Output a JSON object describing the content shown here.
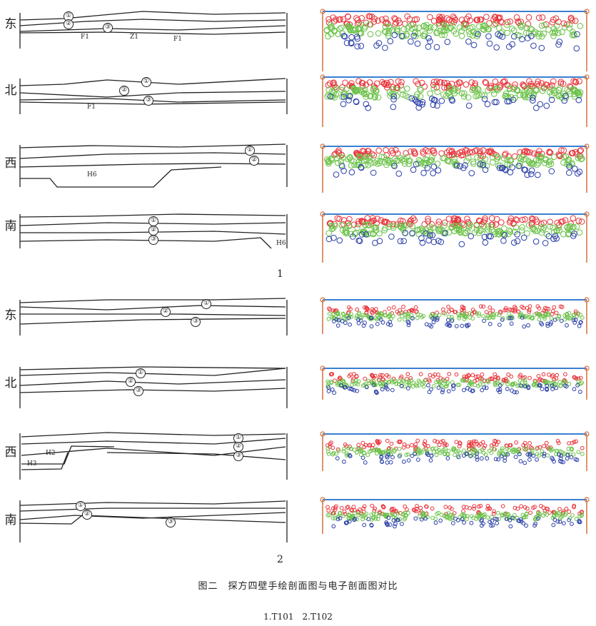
{
  "figure": {
    "caption": "图二　探方四壁手绘剖面图与电子剖面图对比",
    "subcaption": "1.T101　2.T102",
    "plate_labels": [
      "1",
      "2"
    ]
  },
  "plates": [
    {
      "label": "1",
      "panels": [
        {
          "direction": "东",
          "layers": [
            "①",
            "②",
            "③"
          ],
          "features": [
            "F1",
            "Z1",
            "F1"
          ]
        },
        {
          "direction": "北",
          "layers": [
            "①",
            "②",
            "③"
          ],
          "features": [
            "F1"
          ]
        },
        {
          "direction": "西",
          "layers": [
            "①",
            "②"
          ],
          "features": [
            "H6"
          ]
        },
        {
          "direction": "南",
          "layers": [
            "①",
            "②",
            "③"
          ],
          "features": [
            "H6"
          ]
        }
      ]
    },
    {
      "label": "2",
      "panels": [
        {
          "direction": "东",
          "layers": [
            "①",
            "②",
            "③"
          ],
          "features": []
        },
        {
          "direction": "北",
          "layers": [
            "①",
            "②",
            "③"
          ],
          "features": []
        },
        {
          "direction": "西",
          "layers": [
            "①",
            "②",
            "③"
          ],
          "features": [
            "H2",
            "H3"
          ]
        },
        {
          "direction": "南",
          "layers": [
            "①",
            "②",
            "③"
          ],
          "features": []
        }
      ]
    }
  ],
  "colors": {
    "ink": "#222222",
    "layer_red": "#e8333a",
    "layer_green": "#6cc24a",
    "layer_blue": "#2b3fa8",
    "datum_blue": "#3a7fd0",
    "post_orange": "#d2703c"
  }
}
